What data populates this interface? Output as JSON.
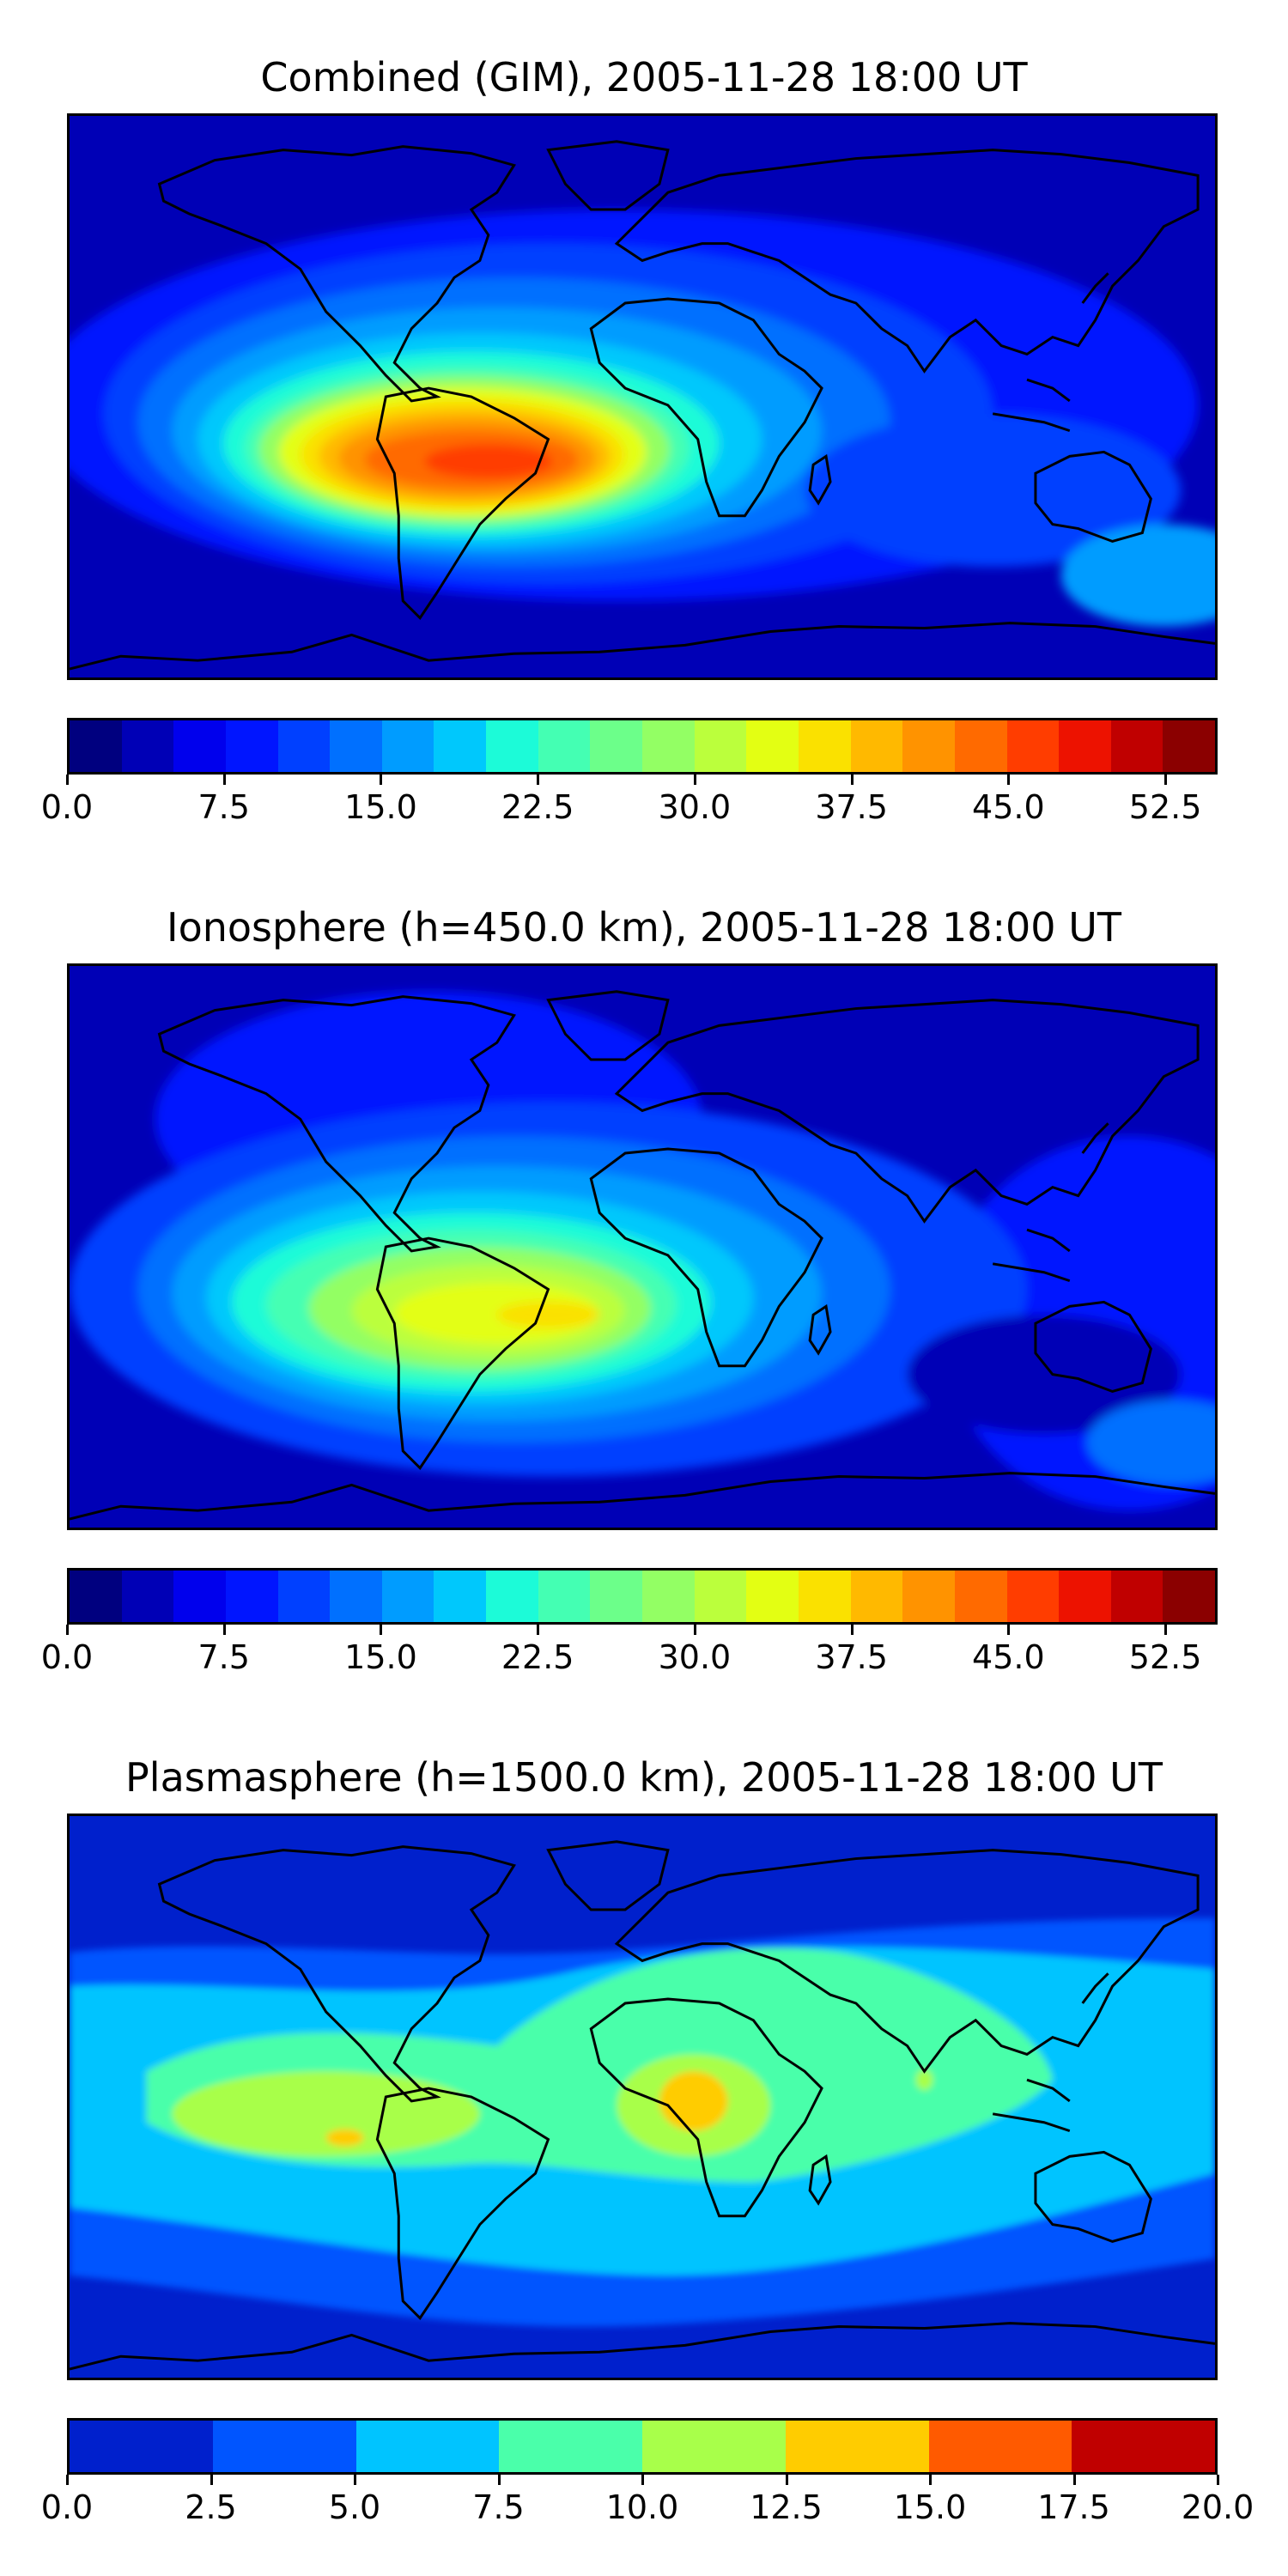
{
  "figure": {
    "panels": [
      {
        "id": "combined",
        "title": "Combined (GIM), 2005-11-28 18:00 UT",
        "colorbar": {
          "min": 0,
          "max": 55,
          "step": 2.5,
          "tick_labels": [
            "0.0",
            "7.5",
            "15.0",
            "22.5",
            "30.0",
            "37.5",
            "45.0",
            "52.5"
          ],
          "tick_values": [
            0,
            7.5,
            15,
            22.5,
            30,
            37.5,
            45,
            52.5
          ],
          "colors": [
            "#00007f",
            "#0000b6",
            "#0000ed",
            "#0015ff",
            "#0040ff",
            "#0070ff",
            "#009cff",
            "#00c8fc",
            "#1cfbd8",
            "#44ffb3",
            "#6cff8a",
            "#93ff64",
            "#bbff3c",
            "#e3ff13",
            "#fae100",
            "#ffb900",
            "#ff9300",
            "#ff6a00",
            "#ff3d00",
            "#ed1200",
            "#c00000",
            "#8b0000"
          ]
        },
        "field": {
          "description": "",
          "peak_value": 50,
          "peak_region": "South America / South Atlantic"
        }
      },
      {
        "id": "ionosphere",
        "title": "Ionosphere  (h=450.0 km), 2005-11-28 18:00 UT",
        "colorbar": {
          "min": 0,
          "max": 55,
          "step": 2.5,
          "tick_labels": [
            "0.0",
            "7.5",
            "15.0",
            "22.5",
            "30.0",
            "37.5",
            "45.0",
            "52.5"
          ],
          "tick_values": [
            0,
            7.5,
            15,
            22.5,
            30,
            37.5,
            45,
            52.5
          ],
          "colors": [
            "#00007f",
            "#0000b6",
            "#0000ed",
            "#0015ff",
            "#0040ff",
            "#0070ff",
            "#009cff",
            "#00c8fc",
            "#1cfbd8",
            "#44ffb3",
            "#6cff8a",
            "#93ff64",
            "#bbff3c",
            "#e3ff13",
            "#fae100",
            "#ffb900",
            "#ff9300",
            "#ff6a00",
            "#ff3d00",
            "#ed1200",
            "#c00000",
            "#8b0000"
          ]
        },
        "field": {
          "peak_value": 36,
          "peak_region": "South America / South Atlantic"
        }
      },
      {
        "id": "plasmasphere",
        "title": "Plasmasphere (h=1500.0 km), 2005-11-28 18:00 UT",
        "colorbar": {
          "min": 0,
          "max": 20,
          "step": 2.5,
          "tick_labels": [
            "0.0",
            "2.5",
            "5.0",
            "7.5",
            "10.0",
            "12.5",
            "15.0",
            "17.5",
            "20.0"
          ],
          "tick_values": [
            0,
            2.5,
            5,
            7.5,
            10,
            12.5,
            15,
            17.5,
            20
          ],
          "colors": [
            "#0020cc",
            "#0055ff",
            "#00c4ff",
            "#4affaa",
            "#a8ff4a",
            "#ffcc00",
            "#ff5a00",
            "#c00000"
          ]
        },
        "field": {
          "peak_value": 15,
          "peak_region": "Central Africa and South Pacific"
        }
      }
    ]
  },
  "theme": {
    "coastline_color": "#000000",
    "background": "#ffffff"
  }
}
